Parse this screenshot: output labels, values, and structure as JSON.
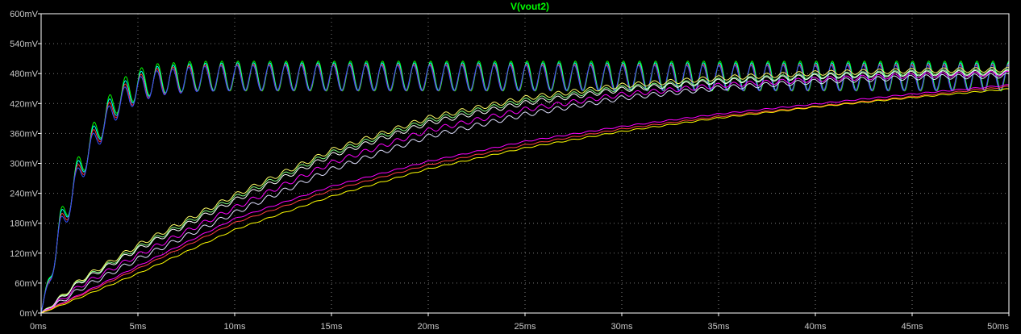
{
  "chart_data": {
    "type": "line",
    "title": "V(vout2)",
    "title_color": "#00ff00",
    "background": "#000000",
    "axis_color": "#ffffff",
    "grid": "dotted",
    "x_unit": "ms",
    "y_unit": "mV",
    "xlim": [
      0,
      50
    ],
    "ylim": [
      0,
      600
    ],
    "x_ticks": [
      0,
      5,
      10,
      15,
      20,
      25,
      30,
      35,
      40,
      45,
      50
    ],
    "y_ticks": [
      0,
      60,
      120,
      180,
      240,
      300,
      360,
      420,
      480,
      540,
      600
    ],
    "x_tick_labels": [
      "0ms",
      "5ms",
      "10ms",
      "15ms",
      "20ms",
      "25ms",
      "30ms",
      "35ms",
      "40ms",
      "45ms",
      "50ms"
    ],
    "y_tick_labels": [
      "0mV",
      "60mV",
      "120mV",
      "180mV",
      "240mV",
      "300mV",
      "360mV",
      "420mV",
      "480mV",
      "540mV",
      "600mV"
    ],
    "ripple_period_ms": 0.83,
    "series": [
      {
        "color": "#00ff00",
        "x": [
          0,
          1,
          2,
          3,
          4,
          5,
          6,
          8,
          10,
          15,
          20,
          25,
          30,
          35,
          40,
          45,
          50
        ],
        "y": [
          0,
          200,
          320,
          400,
          460,
          485,
          495,
          500,
          500,
          500,
          500,
          500,
          500,
          500,
          500,
          500,
          500
        ],
        "ripple_mv": 50
      },
      {
        "color": "#00ffff",
        "x": [
          0,
          1,
          2,
          3,
          4,
          5,
          6,
          8,
          10,
          15,
          20,
          25,
          30,
          35,
          40,
          45,
          50
        ],
        "y": [
          0,
          196,
          314,
          394,
          452,
          478,
          490,
          496,
          497,
          497,
          497,
          497,
          497,
          497,
          497,
          497,
          497
        ],
        "ripple_mv": 46
      },
      {
        "color": "#ff3030",
        "x": [
          0,
          1,
          2,
          3,
          4,
          5,
          6,
          8,
          10,
          15,
          20,
          25,
          30,
          35,
          40,
          45,
          50
        ],
        "y": [
          0,
          190,
          308,
          388,
          446,
          472,
          486,
          493,
          494,
          494,
          494,
          494,
          494,
          494,
          494,
          494,
          494
        ],
        "ripple_mv": 44
      },
      {
        "color": "#3050ff",
        "x": [
          0,
          1,
          2,
          3,
          4,
          5,
          6,
          8,
          10,
          15,
          20,
          25,
          30,
          35,
          40,
          45,
          50
        ],
        "y": [
          0,
          186,
          303,
          382,
          440,
          468,
          482,
          490,
          492,
          492,
          492,
          492,
          492,
          492,
          492,
          492,
          492
        ],
        "ripple_mv": 42
      },
      {
        "color": "#ffff66",
        "x": [
          0,
          2,
          5,
          10,
          15,
          20,
          25,
          30,
          35,
          40,
          45,
          50
        ],
        "y": [
          0,
          70,
          140,
          240,
          330,
          395,
          435,
          460,
          475,
          485,
          490,
          492
        ],
        "ripple_mv": 8
      },
      {
        "color": "#80ff80",
        "x": [
          0,
          2,
          5,
          10,
          15,
          20,
          25,
          30,
          35,
          40,
          45,
          50
        ],
        "y": [
          0,
          68,
          135,
          235,
          325,
          390,
          430,
          455,
          470,
          480,
          486,
          488
        ],
        "ripple_mv": 8
      },
      {
        "color": "#ffffff",
        "x": [
          0,
          2,
          5,
          10,
          15,
          20,
          25,
          30,
          35,
          40,
          45,
          50
        ],
        "y": [
          0,
          66,
          132,
          230,
          320,
          385,
          425,
          452,
          468,
          478,
          484,
          486
        ],
        "ripple_mv": 8
      },
      {
        "color": "#ff00ff",
        "x": [
          0,
          2,
          5,
          10,
          15,
          20,
          25,
          30,
          35,
          40,
          45,
          50
        ],
        "y": [
          0,
          58,
          120,
          215,
          305,
          370,
          412,
          442,
          460,
          472,
          480,
          484
        ],
        "ripple_mv": 8
      },
      {
        "color": "#e0e0ff",
        "x": [
          0,
          2,
          5,
          10,
          15,
          20,
          25,
          30,
          35,
          40,
          45,
          50
        ],
        "y": [
          0,
          52,
          112,
          205,
          292,
          358,
          402,
          435,
          455,
          468,
          476,
          480
        ],
        "ripple_mv": 8
      },
      {
        "color": "#ff00ff",
        "x": [
          0,
          5,
          10,
          15,
          20,
          25,
          30,
          35,
          40,
          45,
          50
        ],
        "y": [
          0,
          95,
          190,
          255,
          305,
          345,
          375,
          400,
          420,
          440,
          458
        ],
        "ripple_mv": 2
      },
      {
        "color": "#ff4040",
        "x": [
          0,
          5,
          10,
          15,
          20,
          25,
          30,
          35,
          40,
          45,
          50
        ],
        "y": [
          0,
          90,
          182,
          247,
          298,
          338,
          370,
          395,
          415,
          435,
          455
        ],
        "ripple_mv": 2
      },
      {
        "color": "#ffff00",
        "x": [
          0,
          5,
          10,
          15,
          20,
          25,
          30,
          35,
          40,
          45,
          50
        ],
        "y": [
          0,
          80,
          168,
          235,
          290,
          332,
          365,
          392,
          414,
          433,
          450
        ],
        "ripple_mv": 2
      }
    ]
  }
}
